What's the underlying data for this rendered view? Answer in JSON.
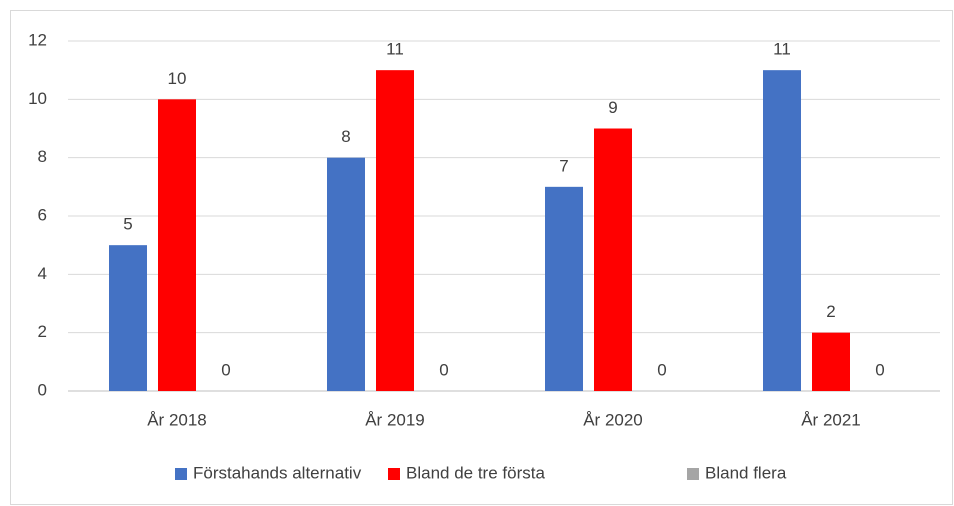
{
  "chart_data": {
    "type": "bar",
    "categories": [
      "År 2018",
      "År 2019",
      "År 2020",
      "År 2021"
    ],
    "series": [
      {
        "name": "Förstahands alternativ",
        "color": "#4472c4",
        "values": [
          5,
          8,
          7,
          11
        ]
      },
      {
        "name": "Bland de tre första",
        "color": "#ff0000",
        "values": [
          10,
          11,
          9,
          2
        ]
      },
      {
        "name": "Bland flera",
        "color": "#a5a5a5",
        "values": [
          0,
          0,
          0,
          0
        ]
      }
    ],
    "ylim": [
      0,
      12
    ],
    "yticks": [
      0,
      2,
      4,
      6,
      8,
      10,
      12
    ],
    "grid": true,
    "legend": "bottom"
  }
}
